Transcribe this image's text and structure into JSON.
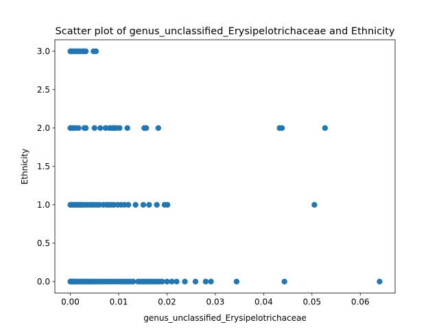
{
  "chart_data": {
    "type": "scatter",
    "title": "Scatter plot of genus_unclassified_Erysipelotrichaceae and Ethnicity",
    "xlabel": "genus_unclassified_Erysipelotrichaceae",
    "ylabel": "Ethnicity",
    "xlim": [
      -0.0032,
      0.0672
    ],
    "ylim": [
      -0.15,
      3.15
    ],
    "xticks": [
      0.0,
      0.01,
      0.02,
      0.03,
      0.04,
      0.05,
      0.06
    ],
    "xtick_labels": [
      "0.00",
      "0.01",
      "0.02",
      "0.03",
      "0.04",
      "0.05",
      "0.06"
    ],
    "yticks": [
      0.0,
      0.5,
      1.0,
      1.5,
      2.0,
      2.5,
      3.0
    ],
    "ytick_labels": [
      "0.0",
      "0.5",
      "1.0",
      "1.5",
      "2.0",
      "2.5",
      "3.0"
    ],
    "grid": false,
    "marker_color": "#1f77b4",
    "series": [
      {
        "x": [
          0.0,
          0.0001,
          0.0002,
          0.0004,
          0.0006,
          0.0008,
          0.001,
          0.0013,
          0.0016,
          0.002,
          0.0023,
          0.0026,
          0.003,
          0.0034,
          0.0038,
          0.0042,
          0.0046,
          0.005,
          0.0055,
          0.006,
          0.0065,
          0.007,
          0.0075,
          0.008,
          0.0085,
          0.009,
          0.0095,
          0.01,
          0.0105,
          0.011,
          0.0115,
          0.012,
          0.0125,
          0.013,
          0.014,
          0.0145,
          0.015,
          0.0155,
          0.016,
          0.0165,
          0.017,
          0.0175,
          0.018,
          0.0185,
          0.019,
          0.02,
          0.021,
          0.022,
          0.0237,
          0.0259,
          0.028,
          0.0291,
          0.0344,
          0.0443,
          0.064,
          0.0,
          0.0002,
          0.0005,
          0.0008,
          0.0011,
          0.0014,
          0.0017,
          0.002,
          0.0023,
          0.0026,
          0.003,
          0.0035,
          0.004,
          0.0045,
          0.005,
          0.0055,
          0.006,
          0.0068,
          0.0075,
          0.008,
          0.0085,
          0.009,
          0.0098,
          0.0105,
          0.0112,
          0.012,
          0.0135,
          0.0151,
          0.0163,
          0.0179,
          0.0195,
          0.0201,
          0.0505,
          0.0,
          0.0005,
          0.001,
          0.0017,
          0.0029,
          0.0032,
          0.005,
          0.0062,
          0.0073,
          0.0081,
          0.0087,
          0.0091,
          0.0095,
          0.0102,
          0.0118,
          0.0153,
          0.0157,
          0.0182,
          0.0433,
          0.0438,
          0.0527,
          0.0,
          0.0003,
          0.0007,
          0.0012,
          0.0016,
          0.002,
          0.0025,
          0.0028,
          0.0032,
          0.0048,
          0.0053
        ],
        "y": [
          0,
          0,
          0,
          0,
          0,
          0,
          0,
          0,
          0,
          0,
          0,
          0,
          0,
          0,
          0,
          0,
          0,
          0,
          0,
          0,
          0,
          0,
          0,
          0,
          0,
          0,
          0,
          0,
          0,
          0,
          0,
          0,
          0,
          0,
          0,
          0,
          0,
          0,
          0,
          0,
          0,
          0,
          0,
          0,
          0,
          0,
          0,
          0,
          0,
          0,
          0,
          0,
          0,
          0,
          0,
          1,
          1,
          1,
          1,
          1,
          1,
          1,
          1,
          1,
          1,
          1,
          1,
          1,
          1,
          1,
          1,
          1,
          1,
          1,
          1,
          1,
          1,
          1,
          1,
          1,
          1,
          1,
          1,
          1,
          1,
          1,
          1,
          1,
          2,
          2,
          2,
          2,
          2,
          2,
          2,
          2,
          2,
          2,
          2,
          2,
          2,
          2,
          2,
          2,
          2,
          2,
          2,
          2,
          2,
          3,
          3,
          3,
          3,
          3,
          3,
          3,
          3,
          3,
          3,
          3
        ]
      }
    ]
  }
}
